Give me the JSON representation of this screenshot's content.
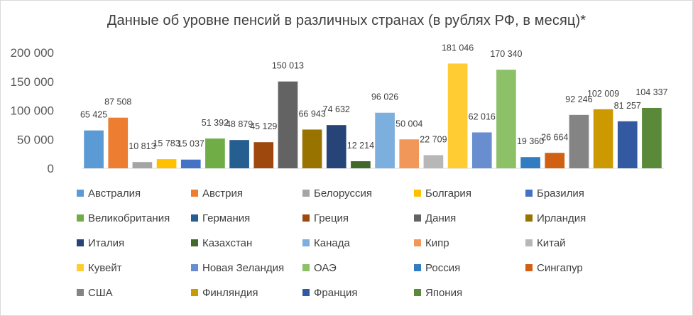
{
  "chart_data": {
    "type": "bar",
    "title": "Данные об уровне пенсий в различных странах (в рублях РФ, в месяц)*",
    "xlabel": "",
    "ylabel": "",
    "ylim": [
      0,
      200000
    ],
    "yticks": [
      0,
      50000,
      100000,
      150000,
      200000
    ],
    "ytick_labels": [
      "0",
      "50 000",
      "100 000",
      "150 000",
      "200 000"
    ],
    "grid": false,
    "legend_position": "bottom",
    "categories": [
      "Австралия",
      "Австрия",
      "Белоруссия",
      "Болгария",
      "Бразилия",
      "Великобритания",
      "Германия",
      "Греция",
      "Дания",
      "Ирландия",
      "Италия",
      "Казахстан",
      "Канада",
      "Кипр",
      "Китай",
      "Кувейт",
      "Новая Зеландия",
      "ОАЭ",
      "Россия",
      "Сингапур",
      "США",
      "Финляндия",
      "Франция",
      "Япония"
    ],
    "values": [
      65425,
      87508,
      10813,
      15783,
      15037,
      51392,
      48879,
      45129,
      150013,
      66943,
      74632,
      12214,
      96026,
      50004,
      22709,
      181046,
      62016,
      170340,
      19360,
      26664,
      92246,
      102009,
      81257,
      104337
    ],
    "value_labels": [
      "65 425",
      "87 508",
      "10 813",
      "15 783",
      "15 037",
      "51 392",
      "48 879",
      "45 129",
      "150 013",
      "66 943",
      "74 632",
      "12 214",
      "96 026",
      "50 004",
      "22 709",
      "181 046",
      "62 016",
      "170 340",
      "19 360",
      "26 664",
      "92 246",
      "102 009",
      "81 257",
      "104 337"
    ],
    "colors": [
      "#5b9bd5",
      "#ed7d31",
      "#a5a5a5",
      "#ffc000",
      "#4472c4",
      "#70ad47",
      "#255e91",
      "#9e480e",
      "#636363",
      "#997300",
      "#264478",
      "#43682b",
      "#7cafdd",
      "#f1975a",
      "#b7b7b7",
      "#ffcd33",
      "#698ed0",
      "#8cc168",
      "#327dc2",
      "#d26012",
      "#848484",
      "#cc9a00",
      "#335aa1",
      "#5a8a39"
    ]
  }
}
